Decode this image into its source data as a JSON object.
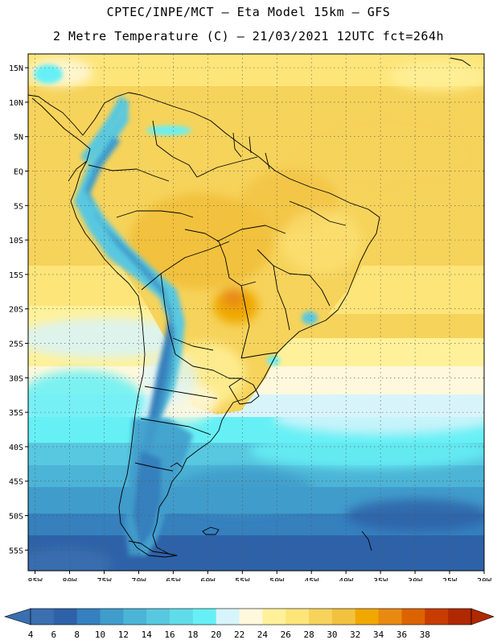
{
  "header": {
    "title_line1": "CPTEC/INPE/MCT –  Eta Model 15km – GFS",
    "title_line2": "2 Metre Temperature (C) – 21/03/2021 12UTC fct=264h"
  },
  "map": {
    "lon_labels": [
      "85W",
      "80W",
      "75W",
      "70W",
      "65W",
      "60W",
      "55W",
      "50W",
      "45W",
      "40W",
      "35W",
      "30W",
      "25W",
      "20W"
    ],
    "lat_labels": [
      "15N",
      "10N",
      "5N",
      "EQ",
      "5S",
      "10S",
      "15S",
      "20S",
      "25S",
      "30S",
      "35S",
      "40S",
      "45S",
      "50S",
      "55S"
    ],
    "lon_range": [
      -86,
      -20
    ],
    "lat_range": [
      17,
      -58
    ],
    "grid": "dotted"
  },
  "colorbar": {
    "labels": [
      "4",
      "6",
      "8",
      "10",
      "12",
      "14",
      "16",
      "18",
      "20",
      "22",
      "24",
      "26",
      "28",
      "30",
      "32",
      "34",
      "36",
      "38"
    ],
    "colors": [
      "#3a6fb0",
      "#2e62a8",
      "#3580bd",
      "#409ccb",
      "#4cb4d6",
      "#58c8e0",
      "#60dce8",
      "#66f0f5",
      "#d8f4fb",
      "#fff8dc",
      "#fff199",
      "#fde57a",
      "#f6d35b",
      "#f2c13e",
      "#f0a800",
      "#e88a12",
      "#dc6400",
      "#c83c00",
      "#b02800"
    ]
  },
  "colors": {
    "ocean_warm": "#fde57a",
    "land_warm": "#fde57a",
    "andes_cold": "#3580bd",
    "ocean_cold": "#2e62a8",
    "hot_spot": "#f0a800",
    "coast": "#000000"
  }
}
